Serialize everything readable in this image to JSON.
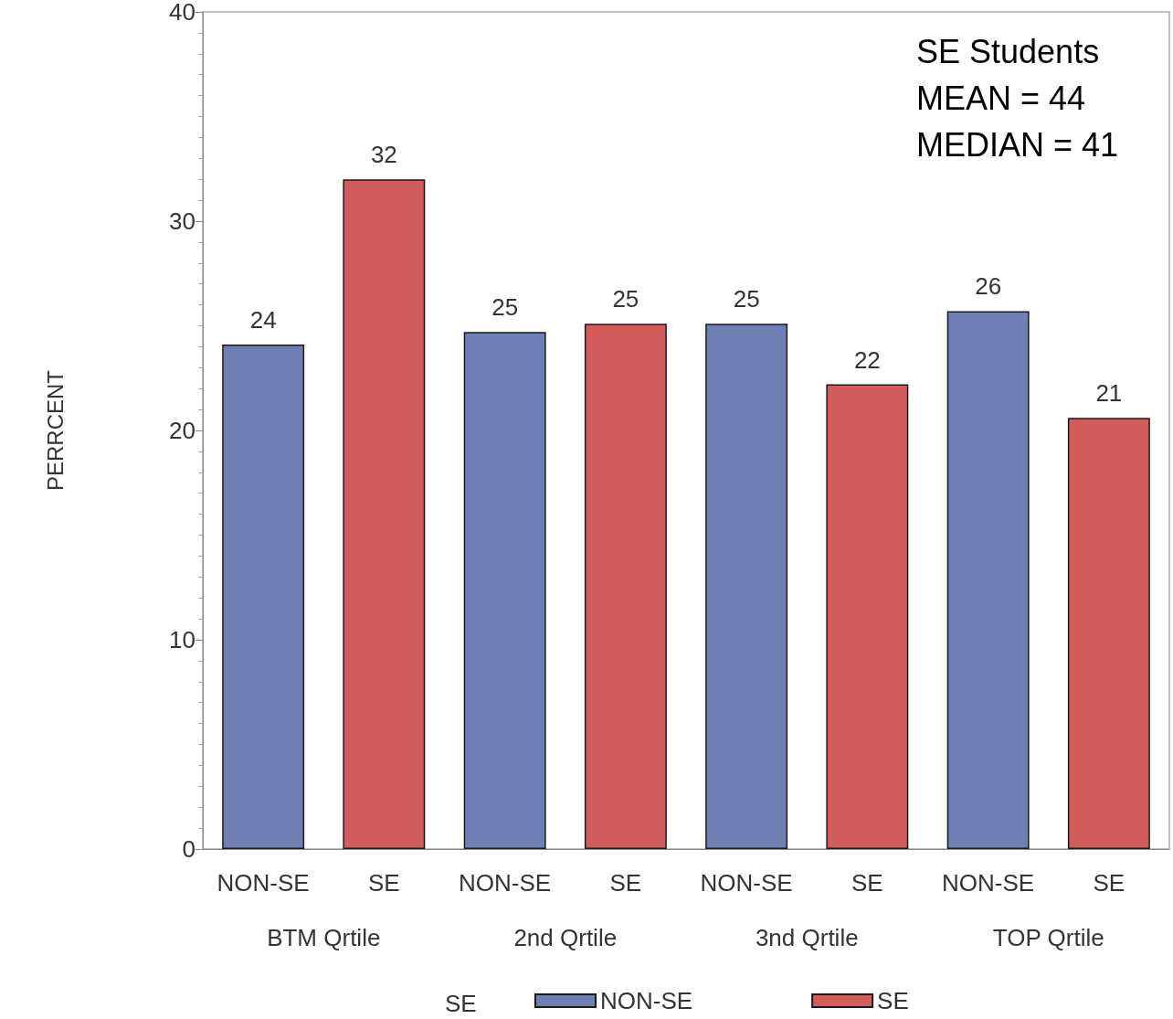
{
  "chart_data": {
    "type": "bar",
    "ylabel": "PERRCENT",
    "legend_title": "SE",
    "legend": "bottom",
    "categories": [
      "BTM Qrtile",
      "2nd Qrtile",
      "3nd Qrtile",
      "TOP Qrtile"
    ],
    "series": [
      {
        "name": "NON-SE",
        "color": "#6f7fb3",
        "values": [
          24.1,
          24.7,
          25.1,
          25.7
        ],
        "value_labels": [
          "24",
          "25",
          "25",
          "26"
        ]
      },
      {
        "name": "SE",
        "color": "#d25b5b",
        "values": [
          32.0,
          25.1,
          22.2,
          20.6
        ],
        "value_labels": [
          "32",
          "25",
          "22",
          "21"
        ]
      }
    ],
    "ylim": [
      0,
      40
    ],
    "yticks": [
      0,
      10,
      20,
      30,
      40
    ],
    "grid": false,
    "annotations": [
      "SE Students",
      "MEAN = 44",
      "MEDIAN = 41"
    ]
  }
}
